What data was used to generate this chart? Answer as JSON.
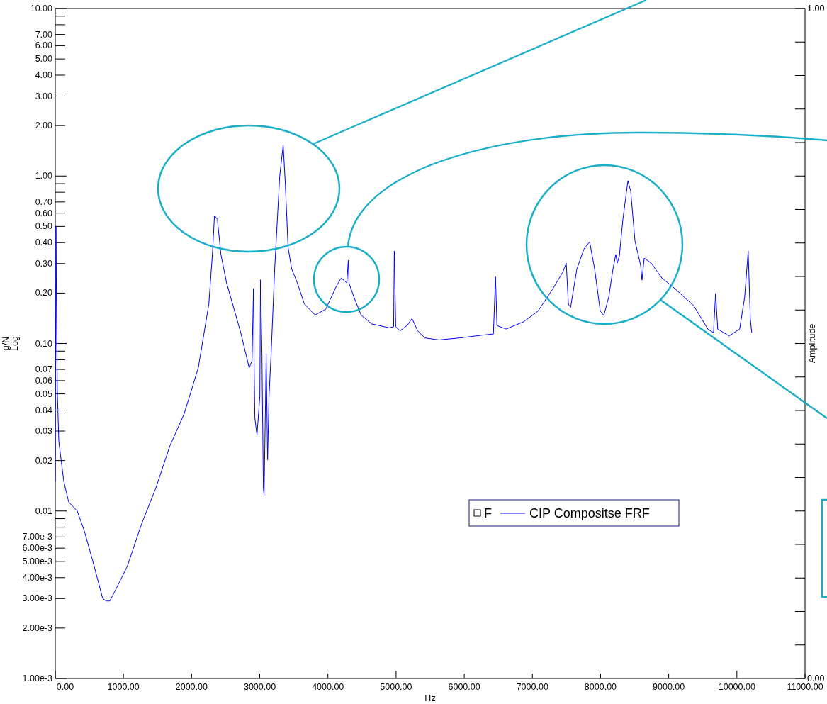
{
  "chart_data": {
    "type": "line",
    "xlabel": "Hz",
    "ylabel": "g/N\nLog",
    "y2label": "Amplitude",
    "log": "y",
    "grid": false,
    "legend": "bottom right",
    "legend_title": "F",
    "xlim": [
      0,
      11000
    ],
    "xticks": [
      {
        "value": 0,
        "label": "0.00"
      },
      {
        "value": 1000,
        "label": "1000.00"
      },
      {
        "value": 2000,
        "label": "2000.00"
      },
      {
        "value": 3000,
        "label": "3000.00"
      },
      {
        "value": 4000,
        "label": "4000.00"
      },
      {
        "value": 5000,
        "label": "5000.00"
      },
      {
        "value": 6000,
        "label": "6000.00"
      },
      {
        "value": 7000,
        "label": "7000.00"
      },
      {
        "value": 8000,
        "label": "8000.00"
      },
      {
        "value": 9000,
        "label": "9000.00"
      },
      {
        "value": 10000,
        "label": "10000.00"
      },
      {
        "value": 11000,
        "label": "11000.00"
      }
    ],
    "ylim": [
      0.001,
      10
    ],
    "yticks": [
      {
        "value": 10,
        "label": "10.00"
      },
      {
        "value": 9,
        "label": null
      },
      {
        "value": 8,
        "label": null
      },
      {
        "value": 7,
        "label": "7.00"
      },
      {
        "value": 6,
        "label": "6.00"
      },
      {
        "value": 5,
        "label": "5.00"
      },
      {
        "value": 4,
        "label": "4.00"
      },
      {
        "value": 3,
        "label": "3.00"
      },
      {
        "value": 2,
        "label": "2.00"
      },
      {
        "value": 1,
        "label": "1.00"
      },
      {
        "value": 0.9,
        "label": null
      },
      {
        "value": 0.8,
        "label": null
      },
      {
        "value": 0.7,
        "label": "0.70"
      },
      {
        "value": 0.6,
        "label": "0.60"
      },
      {
        "value": 0.5,
        "label": "0.50"
      },
      {
        "value": 0.4,
        "label": "0.40"
      },
      {
        "value": 0.3,
        "label": "0.30"
      },
      {
        "value": 0.2,
        "label": "0.20"
      },
      {
        "value": 0.1,
        "label": "0.10"
      },
      {
        "value": 0.09,
        "label": null
      },
      {
        "value": 0.08,
        "label": null
      },
      {
        "value": 0.07,
        "label": "0.07"
      },
      {
        "value": 0.06,
        "label": "0.06"
      },
      {
        "value": 0.05,
        "label": "0.05"
      },
      {
        "value": 0.04,
        "label": "0.04"
      },
      {
        "value": 0.03,
        "label": "0.03"
      },
      {
        "value": 0.02,
        "label": "0.02"
      },
      {
        "value": 0.01,
        "label": "0.01"
      },
      {
        "value": 0.009,
        "label": null
      },
      {
        "value": 0.008,
        "label": null
      },
      {
        "value": 0.007,
        "label": "7.00e-3"
      },
      {
        "value": 0.006,
        "label": "6.00e-3"
      },
      {
        "value": 0.005,
        "label": "5.00e-3"
      },
      {
        "value": 0.004,
        "label": "4.00e-3"
      },
      {
        "value": 0.003,
        "label": "3.00e-3"
      },
      {
        "value": 0.002,
        "label": "2.00e-3"
      },
      {
        "value": 0.001,
        "label": "1.00e-3"
      }
    ],
    "y2lim": [
      0,
      1
    ],
    "y2ticks": [
      {
        "value": 0,
        "label": "0.00"
      },
      {
        "value": 0.05,
        "label": null
      },
      {
        "value": 0.1,
        "label": null
      },
      {
        "value": 0.15,
        "label": null
      },
      {
        "value": 0.2,
        "label": null
      },
      {
        "value": 0.25,
        "label": null
      },
      {
        "value": 0.3,
        "label": null
      },
      {
        "value": 0.35,
        "label": null
      },
      {
        "value": 0.4,
        "label": null
      },
      {
        "value": 0.45,
        "label": null
      },
      {
        "value": 0.5,
        "label": null
      },
      {
        "value": 0.55,
        "label": null
      },
      {
        "value": 0.6,
        "label": null
      },
      {
        "value": 0.65,
        "label": null
      },
      {
        "value": 0.7,
        "label": null
      },
      {
        "value": 0.75,
        "label": null
      },
      {
        "value": 0.8,
        "label": null
      },
      {
        "value": 0.85,
        "label": null
      },
      {
        "value": 0.9,
        "label": null
      },
      {
        "value": 0.95,
        "label": null
      },
      {
        "value": 1,
        "label": "1.00"
      }
    ],
    "series": [
      {
        "name": "CIP Compositse FRF",
        "color": "#0000ff",
        "x": [
          0,
          10,
          21,
          31,
          52,
          125,
          197,
          322,
          426,
          540,
          696,
          748,
          800,
          903,
          1059,
          1267,
          1475,
          1682,
          1890,
          2098,
          2253,
          2305,
          2336,
          2378,
          2430,
          2513,
          2721,
          2845,
          2887,
          2908,
          2918,
          2928,
          2959,
          3001,
          3011,
          3032,
          3053,
          3063,
          3084,
          3094,
          3115,
          3136,
          3167,
          3219,
          3292,
          3344,
          3375,
          3416,
          3468,
          3551,
          3655,
          3811,
          3967,
          4122,
          4195,
          4278,
          4299,
          4309,
          4382,
          4486,
          4642,
          4901,
          4964,
          4974,
          4995,
          5057,
          5161,
          5234,
          5317,
          5421,
          5628,
          5940,
          6251,
          6428,
          6459,
          6480,
          6615,
          6874,
          7082,
          7290,
          7445,
          7497,
          7528,
          7560,
          7653,
          7757,
          7840,
          7913,
          7996,
          8048,
          8120,
          8183,
          8224,
          8245,
          8276,
          8328,
          8401,
          8442,
          8505,
          8588,
          8608,
          8640,
          8743,
          8899,
          9055,
          9367,
          9574,
          9657,
          9688,
          9719,
          9885,
          10041,
          10114,
          10166,
          10197,
          10218
        ],
        "values": [
          0.015,
          0.5,
          0.11,
          0.05,
          0.026,
          0.015,
          0.0113,
          0.01,
          0.0076,
          0.0052,
          0.003,
          0.0029,
          0.0029,
          0.0035,
          0.0047,
          0.0084,
          0.0137,
          0.0245,
          0.038,
          0.0715,
          0.172,
          0.34,
          0.58,
          0.552,
          0.34,
          0.23,
          0.116,
          0.0715,
          0.079,
          0.213,
          0.0715,
          0.036,
          0.0283,
          0.0484,
          0.24,
          0.087,
          0.0137,
          0.0124,
          0.044,
          0.087,
          0.0202,
          0.0484,
          0.087,
          0.279,
          0.99,
          1.53,
          0.9,
          0.374,
          0.279,
          0.23,
          0.172,
          0.148,
          0.16,
          0.219,
          0.246,
          0.23,
          0.314,
          0.23,
          0.189,
          0.148,
          0.131,
          0.124,
          0.126,
          0.356,
          0.126,
          0.119,
          0.128,
          0.141,
          0.119,
          0.108,
          0.105,
          0.108,
          0.112,
          0.114,
          0.25,
          0.128,
          0.122,
          0.135,
          0.156,
          0.209,
          0.266,
          0.302,
          0.172,
          0.164,
          0.279,
          0.367,
          0.404,
          0.279,
          0.156,
          0.147,
          0.189,
          0.279,
          0.34,
          0.302,
          0.333,
          0.552,
          0.934,
          0.815,
          0.41,
          0.293,
          0.239,
          0.323,
          0.302,
          0.246,
          0.219,
          0.168,
          0.122,
          0.116,
          0.199,
          0.122,
          0.111,
          0.122,
          0.189,
          0.356,
          0.141,
          0.116
        ]
      }
    ]
  }
}
